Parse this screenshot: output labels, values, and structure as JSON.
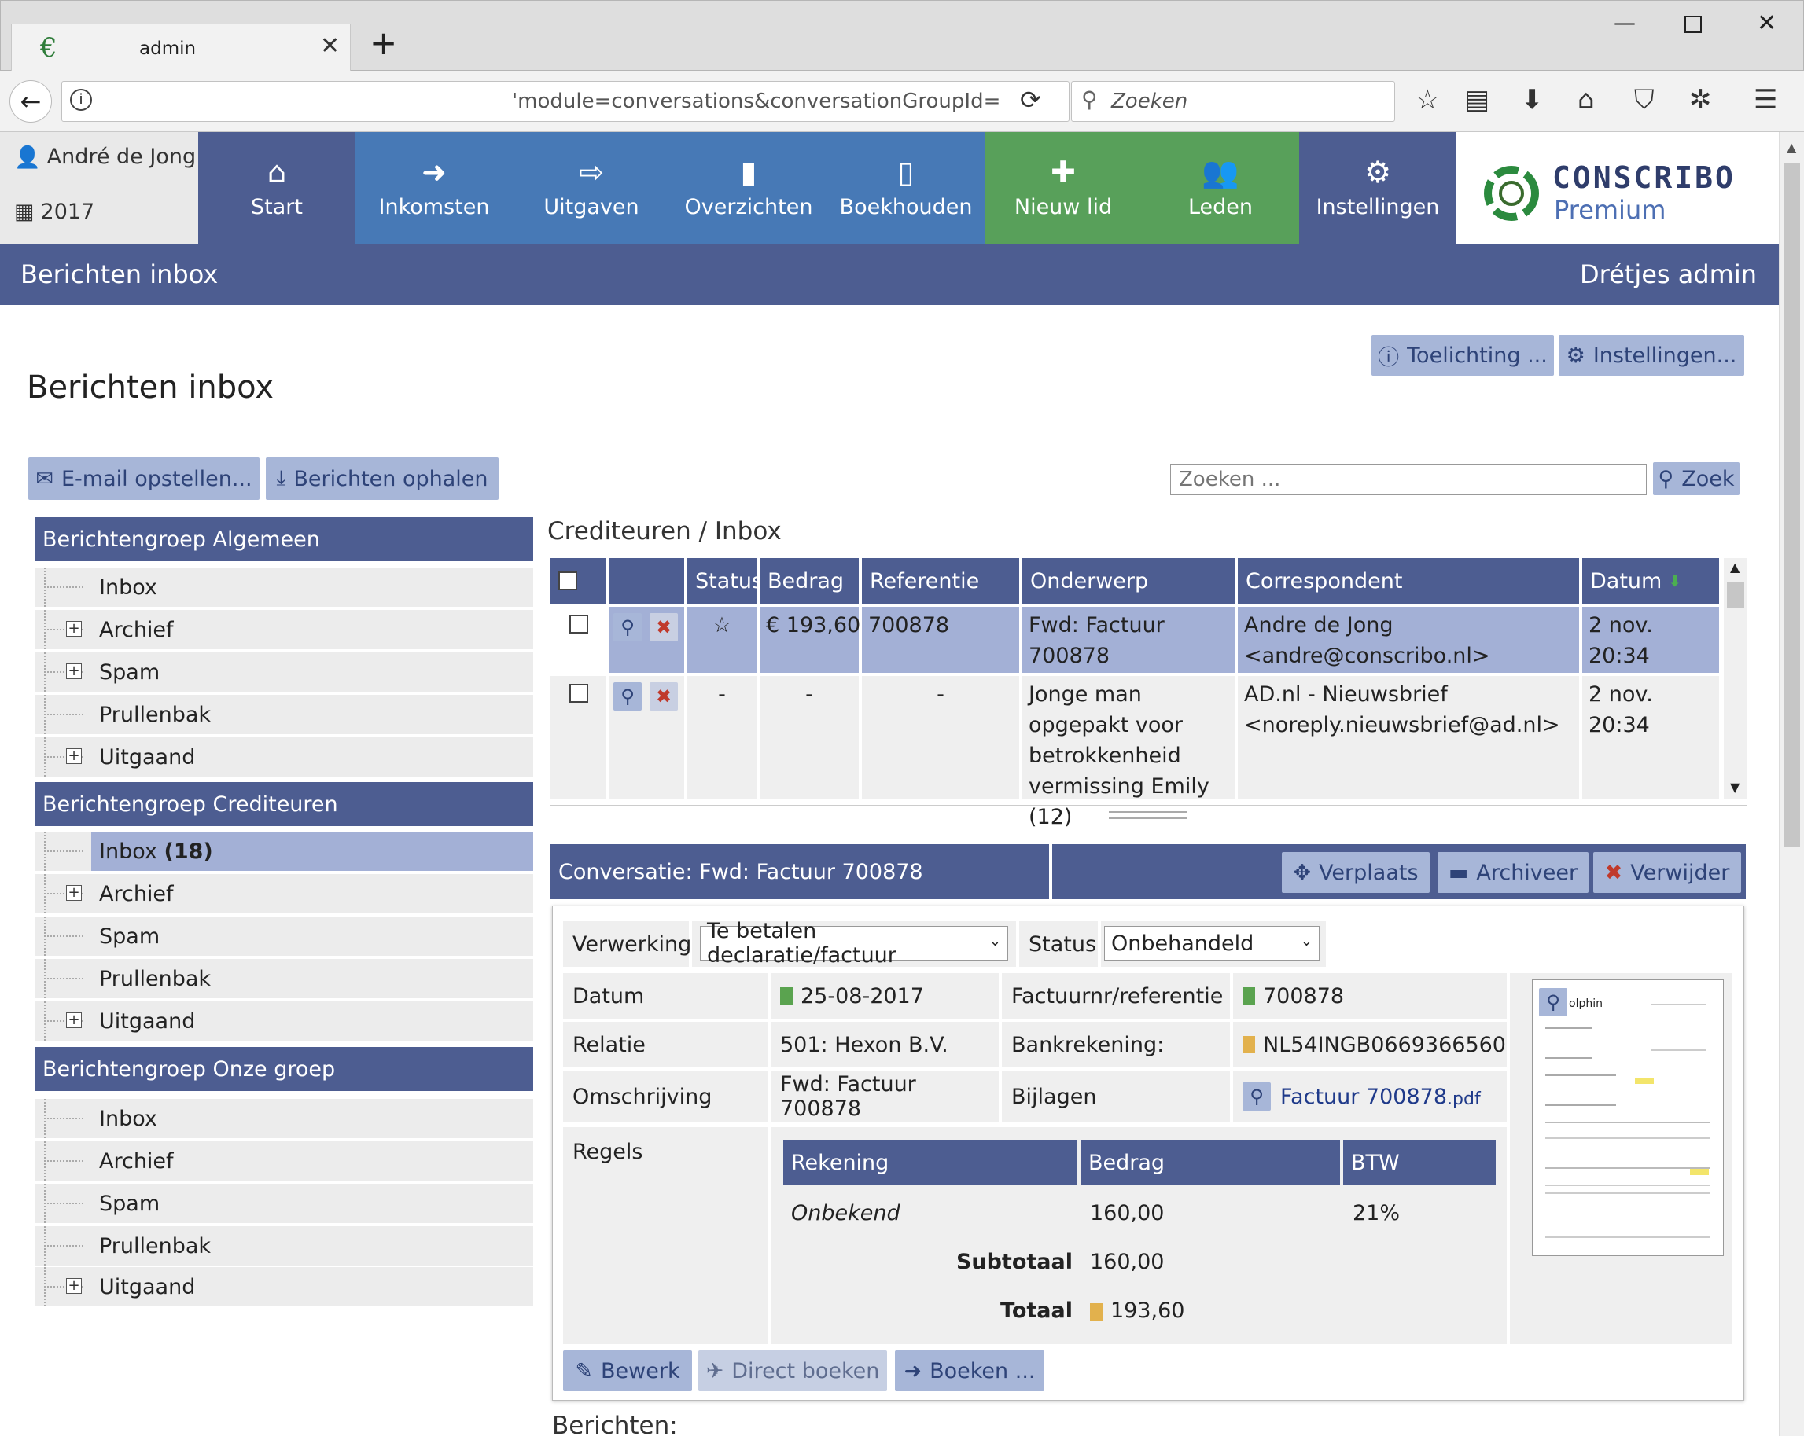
{
  "browser": {
    "tab_title": "admin",
    "url_visible": "'module=conversations&conversationGroupId=",
    "search_placeholder": "Zoeken"
  },
  "header": {
    "user": "André de Jong",
    "year": "2017",
    "nav": [
      {
        "label": "Start",
        "icon": "home-icon",
        "color": "#4d5d91"
      },
      {
        "label": "Inkomsten",
        "icon": "sign-in-icon",
        "color": "#4779b6"
      },
      {
        "label": "Uitgaven",
        "icon": "sign-out-icon",
        "color": "#4779b6"
      },
      {
        "label": "Overzichten",
        "icon": "file-icon",
        "color": "#4779b6"
      },
      {
        "label": "Boekhouden",
        "icon": "book-icon",
        "color": "#4779b6"
      },
      {
        "label": "Nieuw lid",
        "icon": "plus-icon",
        "color": "#58a05a"
      },
      {
        "label": "Leden",
        "icon": "users-icon",
        "color": "#58a05a"
      },
      {
        "label": "Instellingen",
        "icon": "gears-icon",
        "color": "#4d5d91"
      }
    ],
    "logo_name": "CONSCRIBO",
    "logo_sub": "Premium"
  },
  "titlebar": {
    "title": "Berichten inbox",
    "org": "Drétjes admin"
  },
  "page": {
    "heading": "Berichten inbox",
    "help_button": "Toelichting ...",
    "settings_button": "Instellingen...",
    "compose_button": "E-mail opstellen...",
    "fetch_button": "Berichten ophalen",
    "search_placeholder": "Zoeken ...",
    "search_button": "Zoek"
  },
  "sidebar": {
    "groups": [
      {
        "title": "Berichtengroep Algemeen",
        "items": [
          "Inbox",
          "Archief",
          "Spam",
          "Prullenbak",
          "Uitgaand"
        ]
      },
      {
        "title": "Berichtengroep Crediteuren",
        "items": [
          "Inbox",
          "Archief",
          "Spam",
          "Prullenbak",
          "Uitgaand"
        ],
        "inbox_count": "(18)"
      },
      {
        "title": "Berichtengroep Onze groep",
        "items": [
          "Inbox",
          "Archief",
          "Spam",
          "Prullenbak",
          "Uitgaand"
        ]
      }
    ]
  },
  "list": {
    "breadcrumb": "Crediteuren / Inbox",
    "columns": [
      "Status",
      "Bedrag",
      "Referentie",
      "Onderwerp",
      "Correspondent",
      "Datum"
    ],
    "rows": [
      {
        "status": "☆",
        "amount": "€ 193,60",
        "reference": "700878",
        "subject": "Fwd: Factuur 700878",
        "correspondent": "Andre de Jong <andre@conscribo.nl>",
        "date": "2 nov. 20:34"
      },
      {
        "status": "-",
        "amount": "-",
        "reference": "-",
        "subject": "Jonge man opgepakt voor betrokkenheid vermissing Emily (12)",
        "correspondent": "AD.nl - Nieuwsbrief <noreply.nieuwsbrief@ad.nl>",
        "date": "2 nov. 20:34"
      }
    ]
  },
  "conversation": {
    "title": "Conversatie: Fwd: Factuur 700878",
    "move_button": "Verplaats",
    "archive_button": "Archiveer",
    "delete_button": "Verwijder",
    "processing_label": "Verwerking",
    "processing_value": "Te betalen declaratie/factuur",
    "status_label": "Status",
    "status_value": "Onbehandeld",
    "date_label": "Datum",
    "date_value": "25-08-2017",
    "invoice_label": "Factuurnr/referentie",
    "invoice_value": "700878",
    "relation_label": "Relatie",
    "relation_value": "501: Hexon B.V.",
    "bank_label": "Bankrekening:",
    "bank_value": "NL54INGB0669366560",
    "description_label": "Omschrijving",
    "description_value": "Fwd: Factuur 700878",
    "attachments_label": "Bijlagen",
    "attachment_name": "Factuur 700878",
    "attachment_ext": ".pdf",
    "lines_label": "Regels",
    "lines_columns": [
      "Rekening",
      "Bedrag",
      "BTW"
    ],
    "lines": [
      {
        "account": "Onbekend",
        "amount": "160,00",
        "vat": "21%"
      }
    ],
    "subtotal_label": "Subtotaal",
    "subtotal_value": "160,00",
    "total_label": "Totaal",
    "total_value": "193,60",
    "edit_button": "Bewerk",
    "direct_book_button": "Direct boeken",
    "book_button": "Boeken ...",
    "messages_label": "Berichten:",
    "preview_text": "olphin"
  }
}
